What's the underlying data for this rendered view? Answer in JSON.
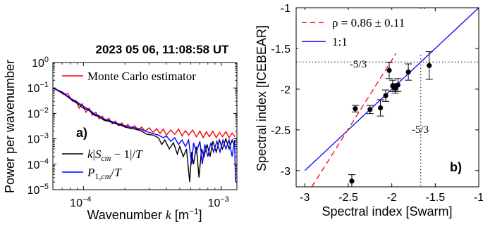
{
  "chart_data": [
    {
      "type": "line",
      "panel_label": "a)",
      "title": "2023 05 06, 11:08:58 UT",
      "xlabel": "Wavenumber k [m⁻¹]",
      "ylabel": "Power per wavenumber",
      "xscale": "log",
      "yscale": "log",
      "xlim": [
        6e-05,
        0.0013
      ],
      "ylim": [
        1e-05,
        1
      ],
      "x_ticks": [
        {
          "value": 0.0001,
          "label_base": "10",
          "label_exp": "−4"
        },
        {
          "value": 0.001,
          "label_base": "10",
          "label_exp": "−3"
        }
      ],
      "y_ticks": [
        {
          "value": 1,
          "label_base": "10",
          "label_exp": "0"
        },
        {
          "value": 0.1,
          "label_base": "10",
          "label_exp": "−1"
        },
        {
          "value": 0.01,
          "label_base": "10",
          "label_exp": "−2"
        },
        {
          "value": 0.001,
          "label_base": "10",
          "label_exp": "−3"
        },
        {
          "value": 0.0001,
          "label_base": "10",
          "label_exp": "−4"
        },
        {
          "value": 1e-05,
          "label_base": "10",
          "label_exp": "−5"
        }
      ],
      "legend_top": {
        "name": "Monte Carlo estimator",
        "color": "#ff0000"
      },
      "legend_bottom": [
        {
          "name": "k|S_cm − 1|/T",
          "color": "#000000"
        },
        {
          "name": "P_1,cm/T",
          "color": "#0000ff"
        }
      ],
      "series": [
        {
          "name": "Monte Carlo estimator",
          "color": "#ff0000",
          "points": [
            [
              6e-05,
              0.1
            ],
            [
              6.6e-05,
              0.075
            ],
            [
              7.2e-05,
              0.055
            ],
            [
              7.7e-05,
              0.06
            ],
            [
              8.3e-05,
              0.03
            ],
            [
              8.8e-05,
              0.032
            ],
            [
              9.3e-05,
              0.016
            ],
            [
              9.8e-05,
              0.024
            ],
            [
              0.000104,
              0.011
            ],
            [
              0.00011,
              0.016
            ],
            [
              0.000116,
              0.0085
            ],
            [
              0.000123,
              0.011
            ],
            [
              0.00013,
              0.006
            ],
            [
              0.000137,
              0.0078
            ],
            [
              0.000145,
              0.005
            ],
            [
              0.000153,
              0.0065
            ],
            [
              0.000162,
              0.0039
            ],
            [
              0.000171,
              0.005
            ],
            [
              0.00018,
              0.0032
            ],
            [
              0.00019,
              0.0042
            ],
            [
              0.0002,
              0.0028
            ],
            [
              0.00021,
              0.0037
            ],
            [
              0.00022,
              0.0025
            ],
            [
              0.000235,
              0.0033
            ],
            [
              0.00025,
              0.0022
            ],
            [
              0.000265,
              0.0029
            ],
            [
              0.00028,
              0.002
            ],
            [
              0.0003,
              0.0027
            ],
            [
              0.00032,
              0.0018
            ],
            [
              0.00034,
              0.0025
            ],
            [
              0.00036,
              0.0016
            ],
            [
              0.00038,
              0.0024
            ],
            [
              0.0004,
              0.0014
            ],
            [
              0.00043,
              0.0022
            ],
            [
              0.00046,
              0.0015
            ],
            [
              0.00049,
              0.0024
            ],
            [
              0.00052,
              0.0013
            ],
            [
              0.00055,
              0.0021
            ],
            [
              0.00058,
              0.0014
            ],
            [
              0.00062,
              0.0022
            ],
            [
              0.00066,
              0.0012
            ],
            [
              0.0007,
              0.002
            ],
            [
              0.00074,
              0.0011
            ],
            [
              0.00078,
              0.0019
            ],
            [
              0.00082,
              0.0012
            ],
            [
              0.00087,
              0.002
            ],
            [
              0.00092,
              0.0011
            ],
            [
              0.00097,
              0.0018
            ],
            [
              0.00102,
              0.0012
            ],
            [
              0.00108,
              0.0019
            ],
            [
              0.00114,
              0.0011
            ],
            [
              0.0012,
              0.0017
            ],
            [
              0.00126,
              0.0012
            ]
          ]
        },
        {
          "name": "k|S_cm − 1|/T",
          "color": "#000000",
          "points": [
            [
              6e-05,
              0.1
            ],
            [
              7e-05,
              0.065
            ],
            [
              8e-05,
              0.038
            ],
            [
              9e-05,
              0.025
            ],
            [
              0.0001,
              0.016
            ],
            [
              0.00011,
              0.013
            ],
            [
              0.00012,
              0.0085
            ],
            [
              0.00013,
              0.0075
            ],
            [
              0.00014,
              0.0055
            ],
            [
              0.00015,
              0.005
            ],
            [
              0.00017,
              0.004
            ],
            [
              0.00019,
              0.0033
            ],
            [
              0.00021,
              0.0027
            ],
            [
              0.00023,
              0.0025
            ],
            [
              0.00026,
              0.0021
            ],
            [
              0.00029,
              0.0015
            ],
            [
              0.00032,
              0.0014
            ],
            [
              0.00035,
              0.0011
            ],
            [
              0.00037,
              0.0006
            ],
            [
              0.00039,
              0.0009
            ],
            [
              0.00042,
              0.0004
            ],
            [
              0.00045,
              0.0007
            ],
            [
              0.00048,
              0.00025
            ],
            [
              0.0005,
              0.0005
            ],
            [
              0.00053,
              0.0002
            ],
            [
              0.00056,
              0.0004
            ],
            [
              0.00059,
              2e-05
            ],
            [
              0.00061,
              0.0003
            ],
            [
              0.00063,
              0.0001
            ],
            [
              0.00066,
              0.0005
            ],
            [
              0.00069,
              3e-05
            ],
            [
              0.00072,
              0.0004
            ],
            [
              0.00075,
              0.0002
            ],
            [
              0.00079,
              0.0006
            ],
            [
              0.00083,
              0.0002
            ],
            [
              0.00087,
              0.0008
            ],
            [
              0.00092,
              0.0003
            ],
            [
              0.00097,
              0.0009
            ],
            [
              0.00102,
              0.0004
            ],
            [
              0.00108,
              0.001
            ],
            [
              0.00114,
              0.0004
            ],
            [
              0.0012,
              0.0009
            ],
            [
              0.00126,
              0.0005
            ]
          ]
        },
        {
          "name": "P_1,cm/T",
          "color": "#0000ff",
          "points": [
            [
              6e-05,
              0.1
            ],
            [
              7e-05,
              0.07
            ],
            [
              8e-05,
              0.04
            ],
            [
              9e-05,
              0.028
            ],
            [
              0.0001,
              0.019
            ],
            [
              0.00011,
              0.014
            ],
            [
              0.00012,
              0.0095
            ],
            [
              0.00013,
              0.008
            ],
            [
              0.00014,
              0.006
            ],
            [
              0.00015,
              0.0055
            ],
            [
              0.00017,
              0.0043
            ],
            [
              0.00019,
              0.0036
            ],
            [
              0.00021,
              0.003
            ],
            [
              0.00023,
              0.0028
            ],
            [
              0.00026,
              0.0024
            ],
            [
              0.00029,
              0.0019
            ],
            [
              0.00032,
              0.0016
            ],
            [
              0.00035,
              0.0014
            ],
            [
              0.00038,
              0.0011
            ],
            [
              0.0004,
              0.0013
            ],
            [
              0.00043,
              0.0008
            ],
            [
              0.00046,
              0.0011
            ],
            [
              0.00049,
              0.0006
            ],
            [
              0.00052,
              0.0009
            ],
            [
              0.00055,
              0.0005
            ],
            [
              0.00058,
              0.0009
            ],
            [
              0.00061,
              0.0001
            ],
            [
              0.00063,
              0.0007
            ],
            [
              0.00066,
              0.0003
            ],
            [
              0.0007,
              0.0008
            ],
            [
              0.00073,
              0.0001
            ],
            [
              0.00076,
              0.0006
            ],
            [
              0.0008,
              0.0002
            ],
            [
              0.00084,
              0.0007
            ],
            [
              0.00088,
              0.0003
            ],
            [
              0.00093,
              0.0008
            ],
            [
              0.00098,
              0.0003
            ],
            [
              0.00103,
              0.0009
            ],
            [
              0.00108,
              0.0004
            ],
            [
              0.00114,
              0.0009
            ],
            [
              0.0012,
              0.0002
            ],
            [
              0.00125,
              0.0009
            ],
            [
              0.00127,
              2e-05
            ]
          ]
        }
      ]
    },
    {
      "type": "scatter",
      "panel_label": "b)",
      "xlabel": "Spectral index [Swarm]",
      "ylabel": "Spectral index [ICEBEAR]",
      "xlim": [
        -3.1,
        -1
      ],
      "ylim": [
        -3.2,
        -1
      ],
      "x_ticks": [
        "-3",
        "-2.5",
        "-2",
        "-1.5",
        "-1"
      ],
      "x_tick_values": [
        -3,
        -2.5,
        -2,
        -1.5,
        -1
      ],
      "y_ticks": [
        "-3",
        "-2.5",
        "-2",
        "-1.5",
        "-1"
      ],
      "y_tick_values": [
        -3,
        -2.5,
        -2,
        -1.5,
        -1
      ],
      "legend": [
        {
          "name": "ρ = 0.86 ± 0.11",
          "color": "#ff0000",
          "style": "dashed"
        },
        {
          "name": "1:1",
          "color": "#0000ff",
          "style": "solid"
        }
      ],
      "reference_lines": {
        "x": -1.667,
        "y": -1.667,
        "x_label": "-5/3",
        "y_label": "-5/3"
      },
      "fit_line": {
        "x": [
          -2.92,
          -1.62
        ],
        "y": [
          -3.2,
          -1
        ]
      },
      "one_to_one": {
        "x": [
          -3,
          -1
        ],
        "y": [
          -3,
          -1
        ]
      },
      "points": [
        {
          "x": -2.46,
          "y": -3.13,
          "err": 0.08
        },
        {
          "x": -2.42,
          "y": -2.24,
          "err": 0.04
        },
        {
          "x": -2.25,
          "y": -2.25,
          "err": 0.05
        },
        {
          "x": -2.13,
          "y": -2.23,
          "err": 0.1
        },
        {
          "x": -2.07,
          "y": -2.08,
          "err": 0.07
        },
        {
          "x": -2.03,
          "y": -1.77,
          "err": 0.1
        },
        {
          "x": -1.99,
          "y": -1.96,
          "err": 0.07
        },
        {
          "x": -1.96,
          "y": -1.99,
          "err": 0.06
        },
        {
          "x": -1.93,
          "y": -1.95,
          "err": 0.08
        },
        {
          "x": -1.81,
          "y": -1.79,
          "err": 0.1
        },
        {
          "x": -1.57,
          "y": -1.71,
          "err": 0.17
        }
      ]
    }
  ]
}
